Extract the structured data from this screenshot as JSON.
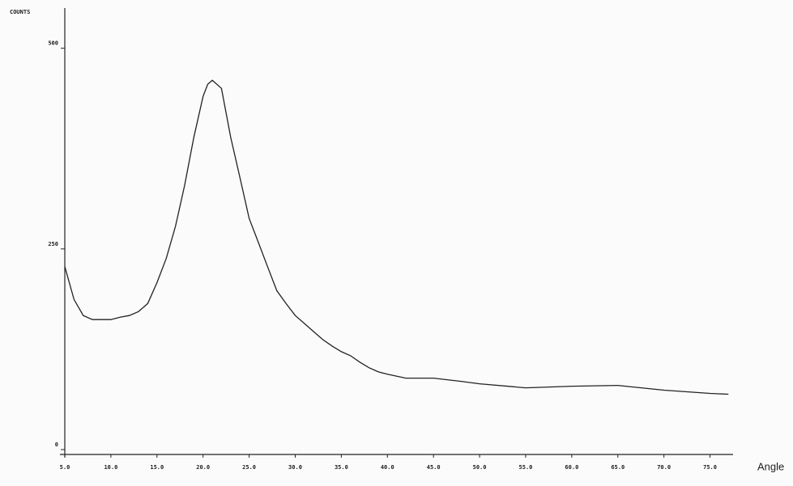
{
  "chart_data": {
    "type": "line",
    "y_label": "COUNTS",
    "x_label": "Angle",
    "x": [
      5,
      6,
      7,
      8,
      9,
      10,
      11,
      12,
      13,
      14,
      15,
      16,
      17,
      18,
      19,
      20,
      20.5,
      21,
      22,
      23,
      24,
      25,
      26,
      27,
      28,
      29,
      30,
      31,
      32,
      33,
      34,
      35,
      36,
      37,
      38,
      39,
      40,
      42,
      45,
      48,
      50,
      55,
      60,
      65,
      70,
      75,
      77
    ],
    "series": [
      {
        "color": "#222222",
        "values": [
          228,
          187,
          167,
          162,
          162,
          162,
          165,
          167,
          172,
          182,
          208,
          238,
          278,
          329,
          389,
          440,
          455,
          460,
          450,
          389,
          339,
          288,
          258,
          228,
          198,
          182,
          167,
          157,
          147,
          137,
          129,
          122,
          117,
          109,
          102,
          97,
          94,
          89,
          89,
          85,
          82,
          77,
          79,
          80,
          74,
          70,
          69
        ]
      }
    ],
    "xlim": [
      5,
      77.5
    ],
    "ylim": [
      0,
      550
    ],
    "xticks": [
      {
        "value": 5,
        "label": "5.0"
      },
      {
        "value": 10,
        "label": "10.0"
      },
      {
        "value": 15,
        "label": "15.0"
      },
      {
        "value": 20,
        "label": "20.0"
      },
      {
        "value": 25,
        "label": "25.0"
      },
      {
        "value": 30,
        "label": "30.0"
      },
      {
        "value": 35,
        "label": "35.0"
      },
      {
        "value": 40,
        "label": "40.0"
      },
      {
        "value": 45,
        "label": "45.0"
      },
      {
        "value": 50,
        "label": "50.0"
      },
      {
        "value": 55,
        "label": "55.0"
      },
      {
        "value": 60,
        "label": "60.0"
      },
      {
        "value": 65,
        "label": "65.0"
      },
      {
        "value": 70,
        "label": "70.0"
      },
      {
        "value": 75,
        "label": "75.0"
      }
    ],
    "yticks": [
      0,
      250,
      500
    ]
  }
}
